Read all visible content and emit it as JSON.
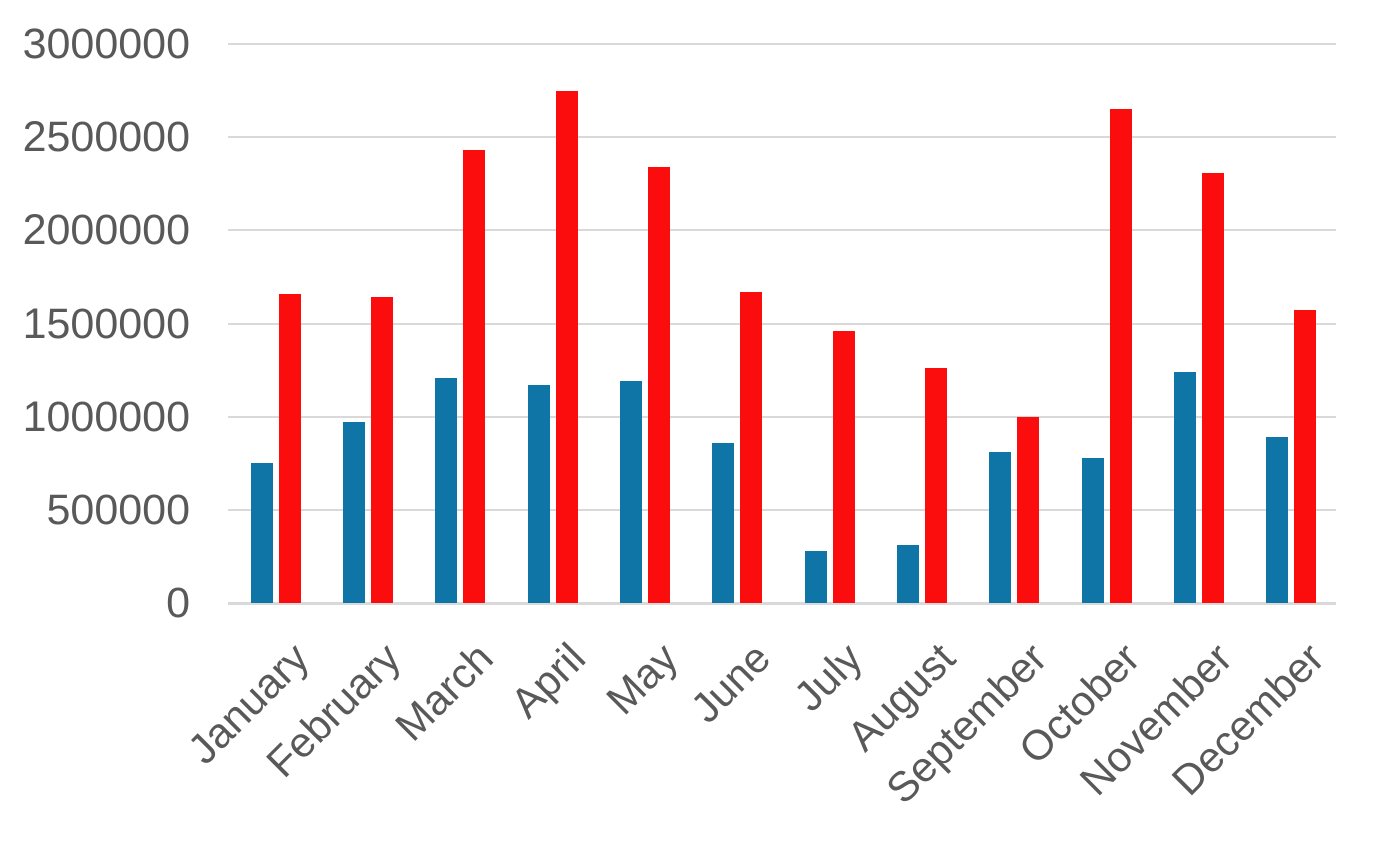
{
  "chart_data": {
    "type": "bar",
    "title": "",
    "categories": [
      "January",
      "February",
      "March",
      "April",
      "May",
      "June",
      "July",
      "August",
      "September",
      "October",
      "November",
      "December"
    ],
    "series": [
      {
        "name": "blue",
        "color": "#0f74a6",
        "values": [
          750000,
          970000,
          1210000,
          1170000,
          1190000,
          860000,
          280000,
          310000,
          810000,
          780000,
          1240000,
          890000
        ]
      },
      {
        "name": "red",
        "color": "#fb0d0d",
        "values": [
          1660000,
          1640000,
          2430000,
          2750000,
          2340000,
          1670000,
          1460000,
          1260000,
          1000000,
          2650000,
          2310000,
          1570000
        ]
      }
    ],
    "ylim": [
      0,
      3000000
    ],
    "ytick_step": 500000,
    "yticks": [
      "0",
      "500000",
      "1000000",
      "1500000",
      "2000000",
      "2500000",
      "3000000"
    ],
    "grid": true,
    "legend": "none",
    "x_label_rotation_deg": -45,
    "tick_label_color": "#595959",
    "gridline_color": "#d9d9d9",
    "axis_line_color": "#d9d9d9",
    "background": "#ffffff"
  }
}
